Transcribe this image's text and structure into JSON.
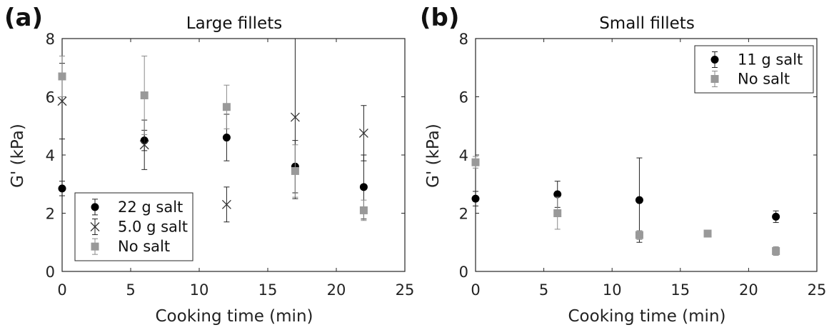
{
  "chart_data": [
    {
      "type": "scatter",
      "panel_label": "(a)",
      "title": "Large fillets",
      "xlabel": "Cooking time (min)",
      "ylabel": "G' (kPa)",
      "xlim": [
        0,
        25
      ],
      "ylim": [
        0,
        8
      ],
      "xticks": [
        "0",
        "5",
        "10",
        "15",
        "20",
        "25"
      ],
      "yticks": [
        "0",
        "2",
        "4",
        "6",
        "8"
      ],
      "legend_position": "bottom-left",
      "grid": false,
      "series": [
        {
          "name": "22 g salt",
          "marker": "circle",
          "color": "#000000",
          "points": [
            {
              "x": 0,
              "y": 2.85,
              "err": 0.25
            },
            {
              "x": 6,
              "y": 4.5,
              "err": 0.35
            },
            {
              "x": 12,
              "y": 4.6,
              "err": 0.8
            },
            {
              "x": 17,
              "y": 3.6,
              "err": 0.9
            },
            {
              "x": 22,
              "y": 2.9,
              "err": 1.1
            }
          ]
        },
        {
          "name": "5.0 g salt",
          "marker": "x",
          "color": "#333333",
          "points": [
            {
              "x": 0,
              "y": 5.85,
              "err": 1.3
            },
            {
              "x": 6,
              "y": 4.35,
              "err": 0.85
            },
            {
              "x": 12,
              "y": 2.3,
              "err": 0.6
            },
            {
              "x": 17,
              "y": 5.3,
              "err": 2.8
            },
            {
              "x": 22,
              "y": 4.75,
              "err": 0.95
            }
          ]
        },
        {
          "name": "No salt",
          "marker": "square",
          "color": "#999999",
          "points": [
            {
              "x": 0,
              "y": 6.7,
              "err": 0.7
            },
            {
              "x": 6,
              "y": 6.05,
              "err": 1.35
            },
            {
              "x": 12,
              "y": 5.65,
              "err": 0.75
            },
            {
              "x": 17,
              "y": 3.45,
              "err": 0.9
            },
            {
              "x": 22,
              "y": 2.1,
              "err": 0.35
            }
          ]
        }
      ]
    },
    {
      "type": "scatter",
      "panel_label": "(b)",
      "title": "Small fillets",
      "xlabel": "Cooking time (min)",
      "ylabel": "G' (kPa)",
      "xlim": [
        0,
        25
      ],
      "ylim": [
        0,
        8
      ],
      "xticks": [
        "0",
        "5",
        "10",
        "15",
        "20",
        "25"
      ],
      "yticks": [
        "0",
        "2",
        "4",
        "6",
        "8"
      ],
      "legend_position": "top-right",
      "grid": false,
      "series": [
        {
          "name": "11 g salt",
          "marker": "circle",
          "color": "#000000",
          "points": [
            {
              "x": 0,
              "y": 2.5,
              "err": 0.25
            },
            {
              "x": 6,
              "y": 2.65,
              "err": 0.45
            },
            {
              "x": 12,
              "y": 2.45,
              "err": 1.45
            },
            {
              "x": 22,
              "y": 1.88,
              "err": 0.2
            }
          ]
        },
        {
          "name": "No salt",
          "marker": "square",
          "color": "#999999",
          "points": [
            {
              "x": 0,
              "y": 3.75,
              "err": 0.2
            },
            {
              "x": 6,
              "y": 2.0,
              "err": 0.55
            },
            {
              "x": 12,
              "y": 1.25,
              "err": 0.15
            },
            {
              "x": 17,
              "y": 1.3,
              "err": 0.1
            },
            {
              "x": 22,
              "y": 0.7,
              "err": 0.15
            }
          ]
        }
      ]
    }
  ]
}
